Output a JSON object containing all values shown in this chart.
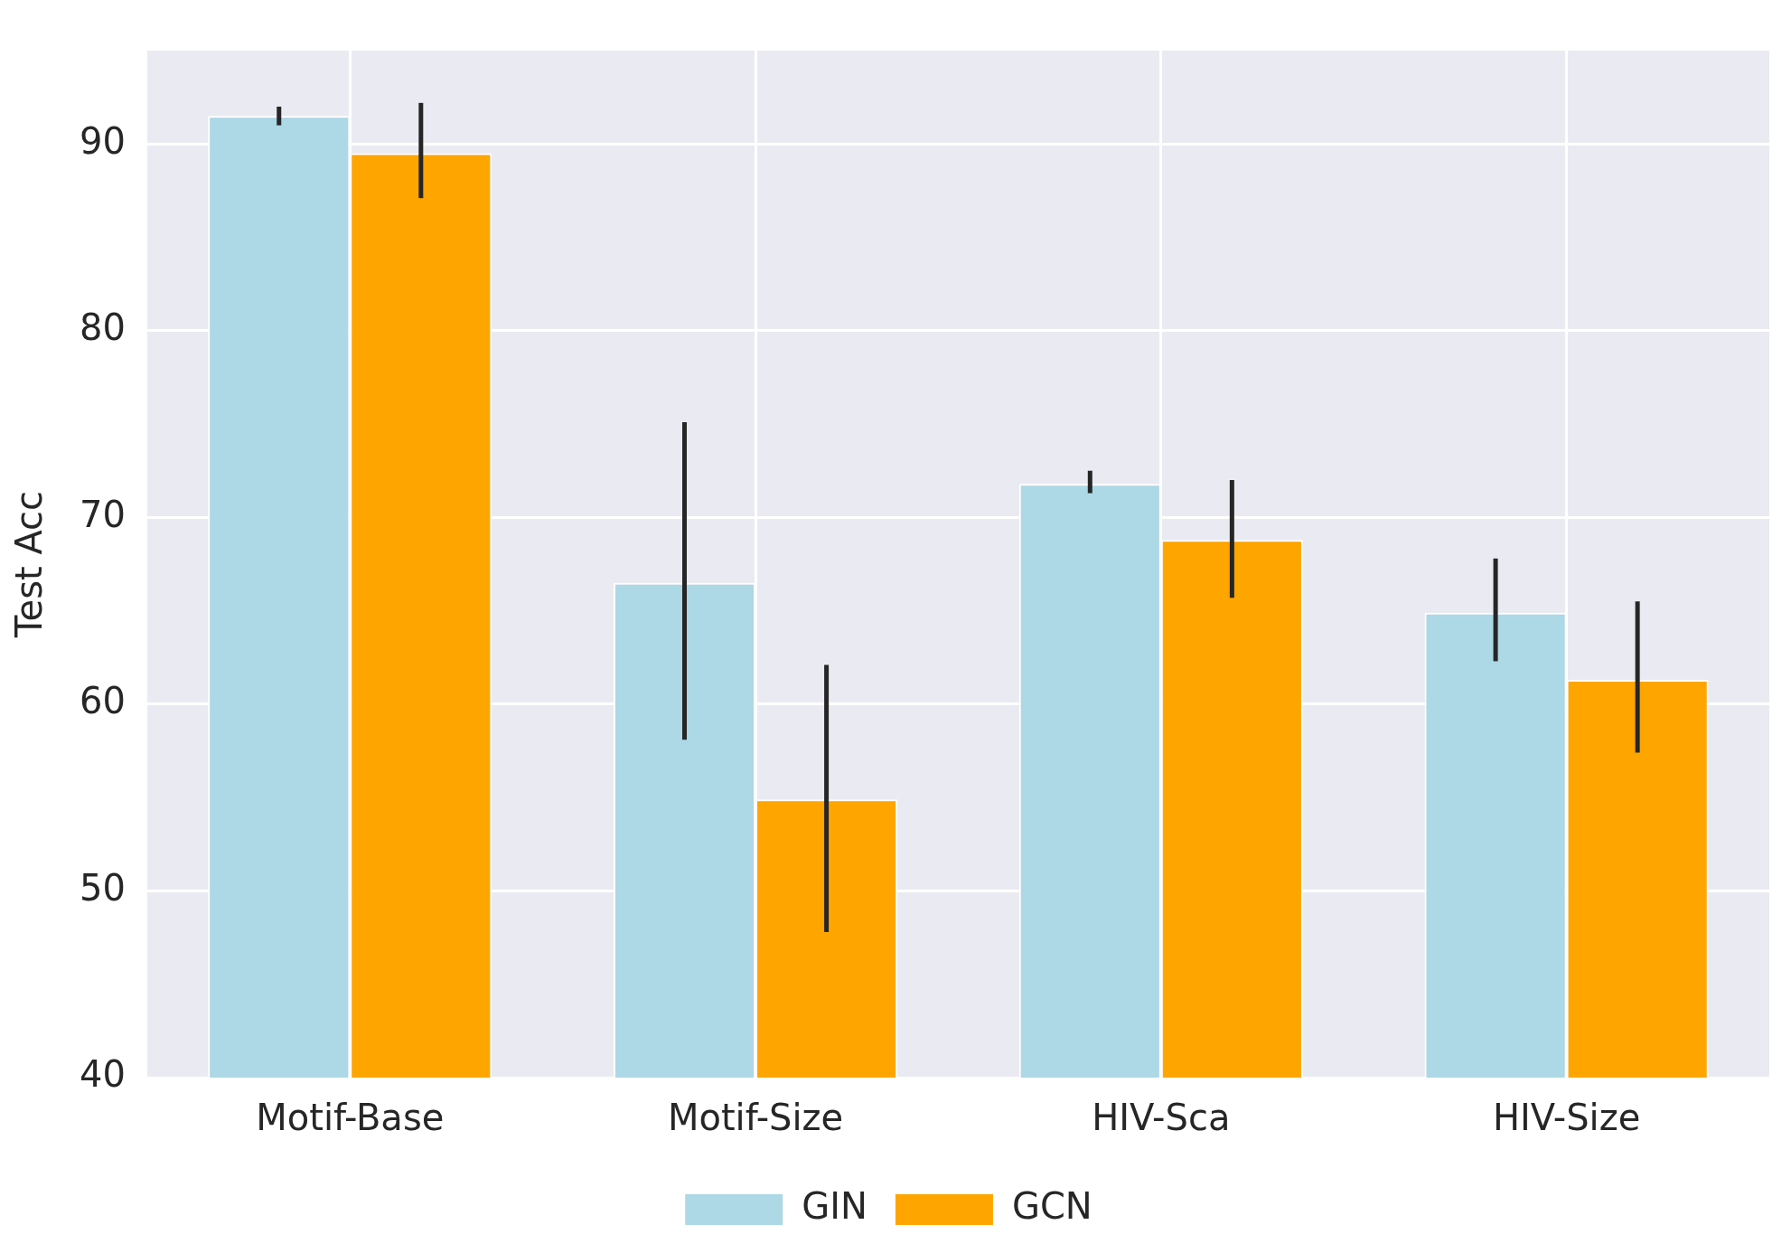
{
  "chart_data": {
    "type": "bar",
    "ylabel": "Test Acc",
    "categories": [
      "Motif-Base",
      "Motif-Size",
      "HIV-Sca",
      "HIV-Size"
    ],
    "series": [
      {
        "name": "GIN",
        "color": "#add8e6",
        "values": [
          91.5,
          66.5,
          71.8,
          64.9
        ],
        "errors": [
          [
            91.0,
            92.0
          ],
          [
            58.1,
            75.1
          ],
          [
            71.3,
            72.5
          ],
          [
            62.3,
            67.8
          ]
        ]
      },
      {
        "name": "GCN",
        "color": "#ffa500",
        "values": [
          89.5,
          54.9,
          68.8,
          61.3
        ],
        "errors": [
          [
            87.1,
            92.2
          ],
          [
            47.8,
            62.1
          ],
          [
            65.7,
            72.0
          ],
          [
            57.4,
            65.5
          ]
        ]
      }
    ],
    "ylim": [
      40,
      95
    ],
    "yticks": [
      40,
      50,
      60,
      70,
      80,
      90
    ],
    "grid": true,
    "legend": "bottom"
  }
}
